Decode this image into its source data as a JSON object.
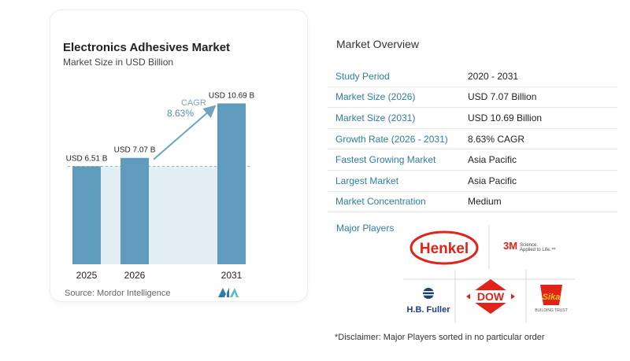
{
  "chart": {
    "title": "Electronics Adhesives Market",
    "subtitle": "Market Size in USD Billion",
    "cagr_label": "CAGR",
    "cagr_value": "8.63%",
    "source": "Source: Mordor Intelligence"
  },
  "chart_data": {
    "type": "bar",
    "categories": [
      "2025",
      "2026",
      "2031"
    ],
    "values": [
      6.51,
      7.07,
      10.69
    ],
    "value_labels": [
      "USD 6.51 B",
      "USD 7.07 B",
      "USD 10.69 B"
    ],
    "ylim": [
      0,
      11.5
    ],
    "grid": false,
    "colors": {
      "bar": "#5f9bbd",
      "bar_light": "#8fbfd6",
      "band": "#e4eef5",
      "arrow": "#6ea3c2"
    }
  },
  "overview": {
    "title": "Market Overview",
    "rows": [
      {
        "key": "Study Period",
        "value": "2020 - 2031"
      },
      {
        "key": "Market Size (2026)",
        "value": "USD 7.07 Billion"
      },
      {
        "key": "Market Size (2031)",
        "value": "USD 10.69 Billion"
      },
      {
        "key": "Growth Rate (2026 - 2031)",
        "value": "8.63% CAGR"
      },
      {
        "key": "Fastest Growing Market",
        "value": "Asia Pacific"
      },
      {
        "key": "Largest Market",
        "value": "Asia Pacific"
      },
      {
        "key": "Market Concentration",
        "value": "Medium"
      }
    ]
  },
  "players": {
    "title": "Major Players",
    "logos": {
      "henkel": "Henkel",
      "threem": "3M",
      "threem_tag1": "Science.",
      "threem_tag2": "Applied to Life.™",
      "hbfuller": "H.B. Fuller",
      "dow": "DOW",
      "sika": "Sika",
      "sika_tag": "BUILDING TRUST"
    }
  },
  "disclaimer": "*Disclaimer: Major Players sorted in no particular order"
}
